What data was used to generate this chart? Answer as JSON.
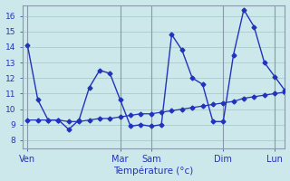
{
  "xlabel": "Température (°c)",
  "background_color": "#cce8ea",
  "grid_color": "#aacccc",
  "line_color": "#2233bb",
  "ylim": [
    7.5,
    16.7
  ],
  "yticks": [
    8,
    9,
    10,
    11,
    12,
    13,
    14,
    15,
    16
  ],
  "day_labels": [
    "Ven",
    "Mar",
    "Sam",
    "Dim",
    "Lun"
  ],
  "day_positions": [
    0,
    9,
    12,
    19,
    24
  ],
  "xlim": [
    -0.5,
    25
  ],
  "x_jagged": [
    0,
    1,
    2,
    3,
    4,
    5,
    6,
    7,
    8,
    9,
    10,
    11,
    12,
    13,
    14,
    15,
    16,
    17,
    18,
    19,
    20,
    21,
    22,
    23,
    24,
    25
  ],
  "y_jagged": [
    14.1,
    10.6,
    9.3,
    9.3,
    8.7,
    9.3,
    11.4,
    12.5,
    12.3,
    10.6,
    8.9,
    9.0,
    8.9,
    9.0,
    14.8,
    13.8,
    12.0,
    11.6,
    9.2,
    9.2,
    13.5,
    16.4,
    15.3,
    13.0,
    12.1,
    11.2
  ],
  "x_smooth": [
    0,
    1,
    2,
    3,
    4,
    5,
    6,
    7,
    8,
    9,
    10,
    11,
    12,
    13,
    14,
    15,
    16,
    17,
    18,
    19,
    20,
    21,
    22,
    23,
    24,
    25
  ],
  "y_smooth": [
    9.3,
    9.3,
    9.3,
    9.3,
    9.2,
    9.2,
    9.3,
    9.4,
    9.4,
    9.5,
    9.6,
    9.7,
    9.7,
    9.8,
    9.9,
    10.0,
    10.1,
    10.2,
    10.3,
    10.4,
    10.5,
    10.7,
    10.8,
    10.9,
    11.0,
    11.1
  ]
}
